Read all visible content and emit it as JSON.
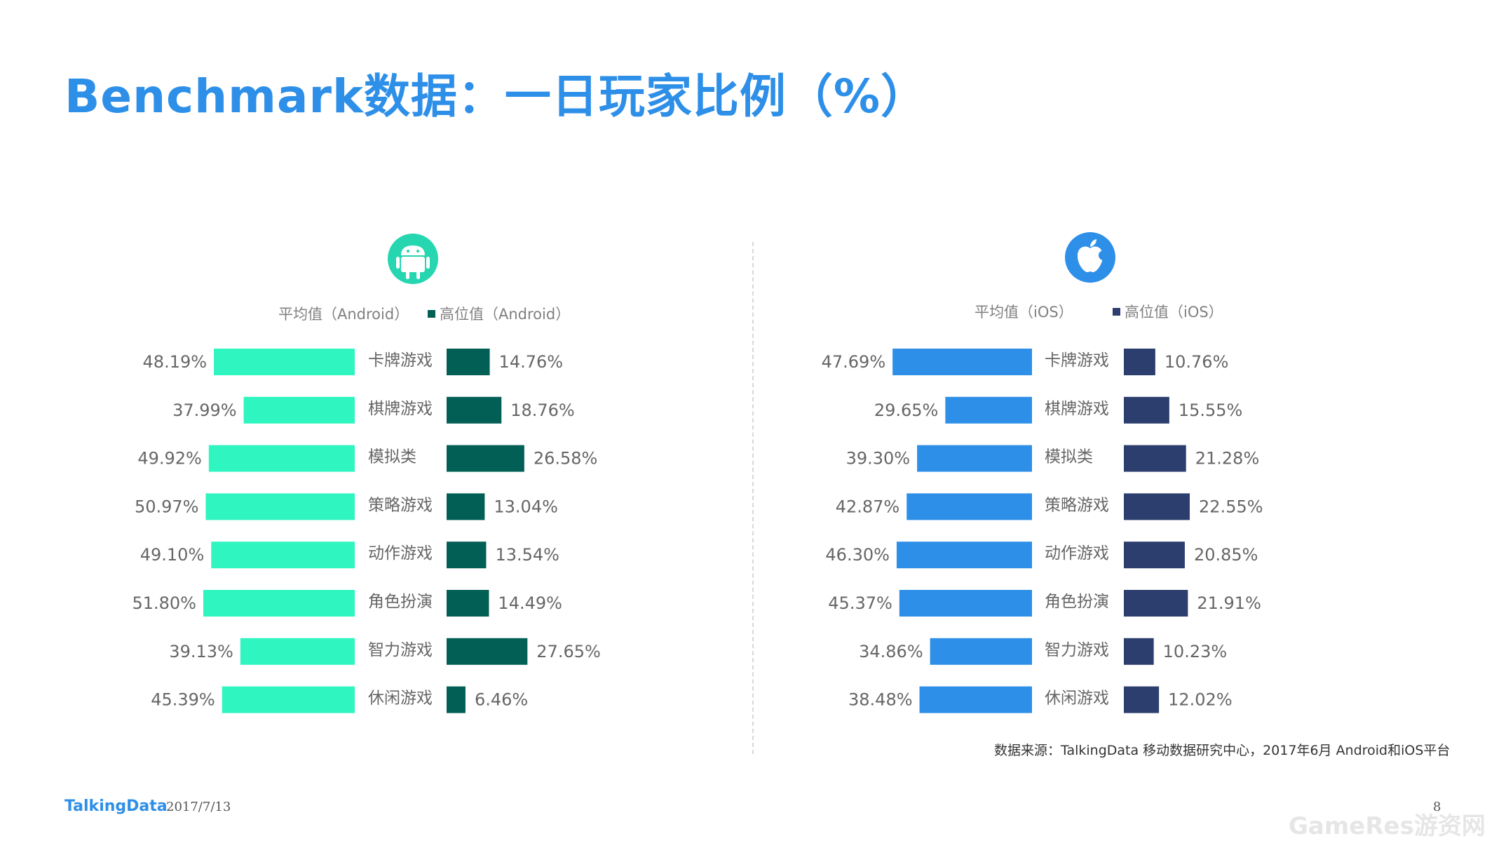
{
  "title": "Benchmark数据：一日玩家比例（%）",
  "colors": {
    "title": "#2e8fe8",
    "android_avg": "#2ff5c0",
    "android_high": "#025f55",
    "ios_avg": "#2e8fe8",
    "ios_high": "#2c3e6e",
    "android_icon": "#25d6b0",
    "ios_icon": "#2e8fe8"
  },
  "icons": {
    "android": "android-icon",
    "ios": "apple-icon"
  },
  "chart_data": [
    {
      "type": "bar",
      "platform": "Android",
      "categories": [
        "卡牌游戏",
        "棋牌游戏",
        "模拟类",
        "策略游戏",
        "动作游戏",
        "角色扮演",
        "智力游戏",
        "休闲游戏"
      ],
      "series": [
        {
          "name": "平均值（Android）",
          "values": [
            48.19,
            37.99,
            49.92,
            50.97,
            49.1,
            51.8,
            39.13,
            45.39
          ],
          "labels": [
            "48.19%",
            "37.99%",
            "49.92%",
            "50.97%",
            "49.10%",
            "51.80%",
            "39.13%",
            "45.39%"
          ]
        },
        {
          "name": "高位值（Android）",
          "values": [
            14.76,
            18.76,
            26.58,
            13.04,
            13.54,
            14.49,
            27.65,
            6.46
          ],
          "labels": [
            "14.76%",
            "18.76%",
            "26.58%",
            "13.04%",
            "13.54%",
            "14.49%",
            "27.65%",
            "6.46%"
          ]
        }
      ]
    },
    {
      "type": "bar",
      "platform": "iOS",
      "categories": [
        "卡牌游戏",
        "棋牌游戏",
        "模拟类",
        "策略游戏",
        "动作游戏",
        "角色扮演",
        "智力游戏",
        "休闲游戏"
      ],
      "series": [
        {
          "name": "平均值（iOS）",
          "values": [
            47.69,
            29.65,
            39.3,
            42.87,
            46.3,
            45.37,
            34.86,
            38.48
          ],
          "labels": [
            "47.69%",
            "29.65%",
            "39.30%",
            "42.87%",
            "46.30%",
            "45.37%",
            "34.86%",
            "38.48%"
          ]
        },
        {
          "name": "高位值（iOS）",
          "values": [
            10.76,
            15.55,
            21.28,
            22.55,
            20.85,
            21.91,
            10.23,
            12.02
          ],
          "labels": [
            "10.76%",
            "15.55%",
            "21.28%",
            "22.55%",
            "20.85%",
            "21.91%",
            "10.23%",
            "12.02%"
          ]
        }
      ]
    }
  ],
  "source": "数据来源：TalkingData 移动数据研究中心，2017年6月 Android和iOS平台",
  "footer": {
    "logo": "TalkingData",
    "date": "2017/7/13",
    "page": "8"
  },
  "watermark": "GameRes游资网"
}
